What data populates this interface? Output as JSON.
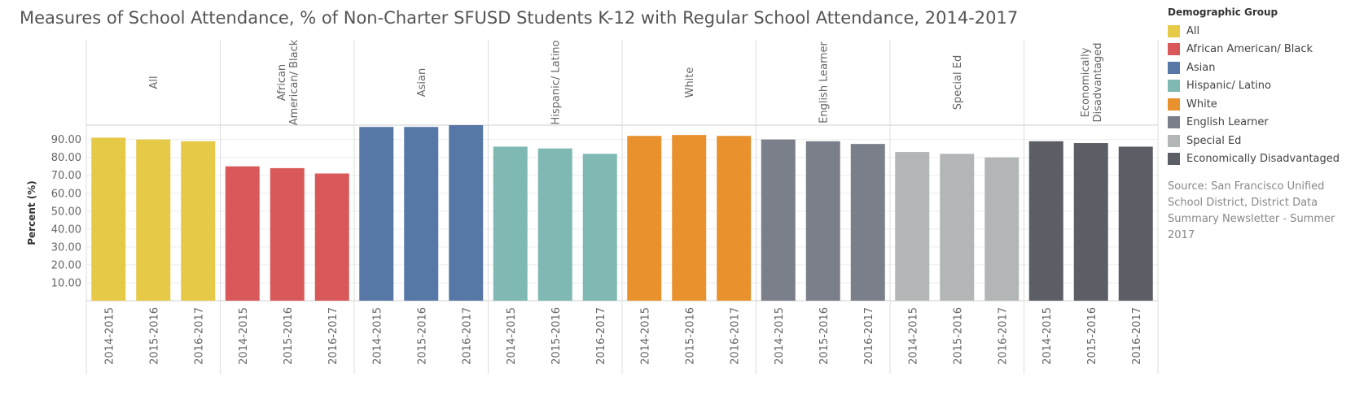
{
  "title": "Measures of School Attendance, % of Non-Charter SFUSD Students K-12 with Regular School Attendance, 2014-2017",
  "legend": {
    "title": "Demographic Group",
    "items": [
      {
        "label": "All",
        "color": "#E5C947"
      },
      {
        "label": "African American/ Black",
        "color": "#D9585A"
      },
      {
        "label": "Asian",
        "color": "#5778A7"
      },
      {
        "label": "Hispanic/ Latino",
        "color": "#80B8B3"
      },
      {
        "label": "White",
        "color": "#E8912D"
      },
      {
        "label": "English Learner",
        "color": "#7A7F8A"
      },
      {
        "label": "Special Ed",
        "color": "#B3B6B7"
      },
      {
        "label": "Economically Disadvantaged",
        "color": "#5C5E66"
      }
    ]
  },
  "source_note": "Source: San Francisco Unified School District, District Data Summary Newsletter - Summer 2017",
  "chart_data": {
    "type": "bar",
    "title": "Measures of School Attendance, % of Non-Charter SFUSD Students K-12 with Regular School Attendance, 2014-2017",
    "ylabel": "Percent (%)",
    "xlabel": "",
    "ylim": [
      0,
      98
    ],
    "y_ticks": [
      "10.00",
      "20.00",
      "30.00",
      "40.00",
      "50.00",
      "60.00",
      "70.00",
      "80.00",
      "90.00"
    ],
    "grid": true,
    "legend_position": "right",
    "categories": [
      "2014-2015",
      "2015-2016",
      "2016-2017"
    ],
    "panels": [
      {
        "name": "All",
        "header_lines": [
          "All"
        ],
        "color": "#E5C947",
        "values": [
          91,
          90,
          89
        ]
      },
      {
        "name": "African American/ Black",
        "header_lines": [
          "African",
          "American/ Black"
        ],
        "color": "#D9585A",
        "values": [
          75,
          74,
          71
        ]
      },
      {
        "name": "Asian",
        "header_lines": [
          "Asian"
        ],
        "color": "#5778A7",
        "values": [
          97,
          97,
          98
        ]
      },
      {
        "name": "Hispanic/ Latino",
        "header_lines": [
          "Hispanic/ Latino"
        ],
        "color": "#80B8B3",
        "values": [
          86,
          85,
          82
        ]
      },
      {
        "name": "White",
        "header_lines": [
          "White"
        ],
        "color": "#E8912D",
        "values": [
          92,
          92.5,
          92
        ]
      },
      {
        "name": "English Learner",
        "header_lines": [
          "English Learner"
        ],
        "color": "#7A7F8A",
        "values": [
          90,
          89,
          87.5
        ]
      },
      {
        "name": "Special Ed",
        "header_lines": [
          "Special Ed"
        ],
        "color": "#B3B6B7",
        "values": [
          83,
          82,
          80
        ]
      },
      {
        "name": "Economically Disadvantaged",
        "header_lines": [
          "Economically",
          "Disadvantaged"
        ],
        "color": "#5C5E66",
        "values": [
          89,
          88,
          86
        ]
      }
    ]
  }
}
